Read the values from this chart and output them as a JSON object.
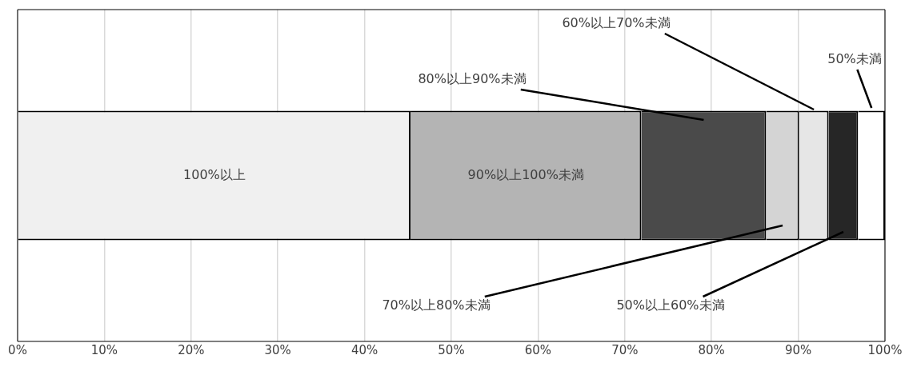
{
  "chart_data": {
    "type": "bar",
    "orientation": "horizontal",
    "stacked": true,
    "categories": [
      null
    ],
    "xlim": [
      0,
      100
    ],
    "xticks": [
      {
        "value": 0,
        "label": "0%"
      },
      {
        "value": 10,
        "label": "10%"
      },
      {
        "value": 20,
        "label": "20%"
      },
      {
        "value": 30,
        "label": "30%"
      },
      {
        "value": 40,
        "label": "40%"
      },
      {
        "value": 50,
        "label": "50%"
      },
      {
        "value": 60,
        "label": "60%"
      },
      {
        "value": 70,
        "label": "70%"
      },
      {
        "value": 80,
        "label": "80%"
      },
      {
        "value": 90,
        "label": "90%"
      },
      {
        "value": 100,
        "label": "100%"
      }
    ],
    "tick_labels": "x",
    "grid": "x",
    "legend": false,
    "series": [
      {
        "name": "100%以上",
        "color": "#f0f0f0",
        "values": [
          45.3
        ]
      },
      {
        "name": "90%以上100%未満",
        "color": "#b4b4b4",
        "values": [
          26.6
        ]
      },
      {
        "name": "80%以上90%未満",
        "color": "#4a4a4a",
        "values": [
          14.4
        ]
      },
      {
        "name": "70%以上80%未満",
        "color": "#d4d4d4",
        "values": [
          3.8
        ]
      },
      {
        "name": "60%以上70%未満",
        "color": "#e6e6e6",
        "values": [
          3.4
        ]
      },
      {
        "name": "50%以上60%未満",
        "color": "#262626",
        "values": [
          3.4
        ]
      },
      {
        "name": "50%未満",
        "color": "#ffffff",
        "values": [
          3.1
        ]
      }
    ]
  }
}
